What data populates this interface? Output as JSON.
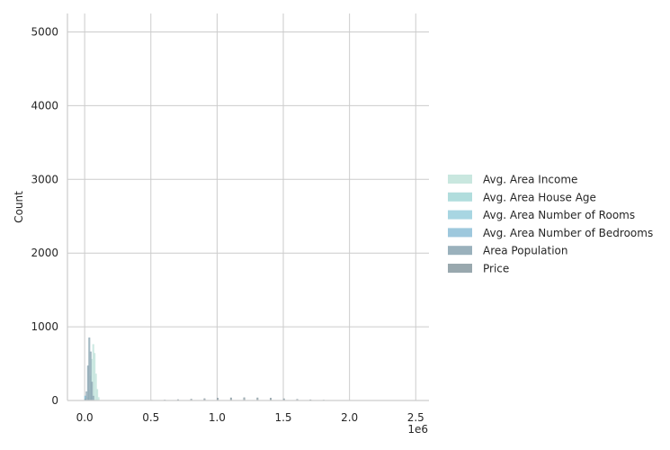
{
  "chart_data": {
    "type": "histogram",
    "title": "",
    "xlabel": "",
    "ylabel": "Count",
    "x_offset_label": "1e6",
    "xlim": [
      -0.13,
      2.6
    ],
    "ylim": [
      0,
      5250
    ],
    "x_ticks": [
      0.0,
      0.5,
      1.0,
      1.5,
      2.0,
      2.5
    ],
    "x_tick_labels": [
      "0.0",
      "0.5",
      "1.0",
      "1.5",
      "2.0",
      "2.5"
    ],
    "y_ticks": [
      0,
      1000,
      2000,
      3000,
      4000,
      5000
    ],
    "y_tick_labels": [
      "0",
      "1000",
      "2000",
      "3000",
      "4000",
      "5000"
    ],
    "grid": true,
    "legend_position": "right",
    "series": [
      {
        "name": "Avg. Area Income",
        "color": "#c3e4dc",
        "bins": [
          [
            0.02,
            40
          ],
          [
            0.03,
            140
          ],
          [
            0.04,
            330
          ],
          [
            0.05,
            560
          ],
          [
            0.06,
            760
          ],
          [
            0.07,
            640
          ],
          [
            0.08,
            360
          ],
          [
            0.09,
            150
          ],
          [
            0.1,
            40
          ]
        ]
      },
      {
        "name": "Avg. Area House Age",
        "color": "#a9d9d9",
        "bins": [
          [
            0.0,
            60
          ]
        ]
      },
      {
        "name": "Avg. Area Number of Rooms",
        "color": "#9fd2df",
        "bins": [
          [
            0.0,
            60
          ]
        ]
      },
      {
        "name": "Avg. Area Number of Bedrooms",
        "color": "#94c2d9",
        "bins": [
          [
            0.0,
            60
          ]
        ]
      },
      {
        "name": "Area Population",
        "color": "#8fa9b5",
        "bins": [
          [
            0.0,
            20
          ],
          [
            0.01,
            120
          ],
          [
            0.02,
            470
          ],
          [
            0.03,
            850
          ],
          [
            0.04,
            660
          ],
          [
            0.05,
            250
          ],
          [
            0.06,
            60
          ]
        ]
      },
      {
        "name": "Price",
        "color": "#8e9ea5",
        "bins": [
          [
            0.5,
            4
          ],
          [
            0.6,
            7
          ],
          [
            0.7,
            12
          ],
          [
            0.8,
            18
          ],
          [
            0.9,
            25
          ],
          [
            1.0,
            32
          ],
          [
            1.1,
            36
          ],
          [
            1.2,
            38
          ],
          [
            1.3,
            36
          ],
          [
            1.4,
            32
          ],
          [
            1.5,
            24
          ],
          [
            1.6,
            16
          ],
          [
            1.7,
            10
          ],
          [
            1.8,
            6
          ],
          [
            1.9,
            3
          ]
        ]
      }
    ]
  }
}
